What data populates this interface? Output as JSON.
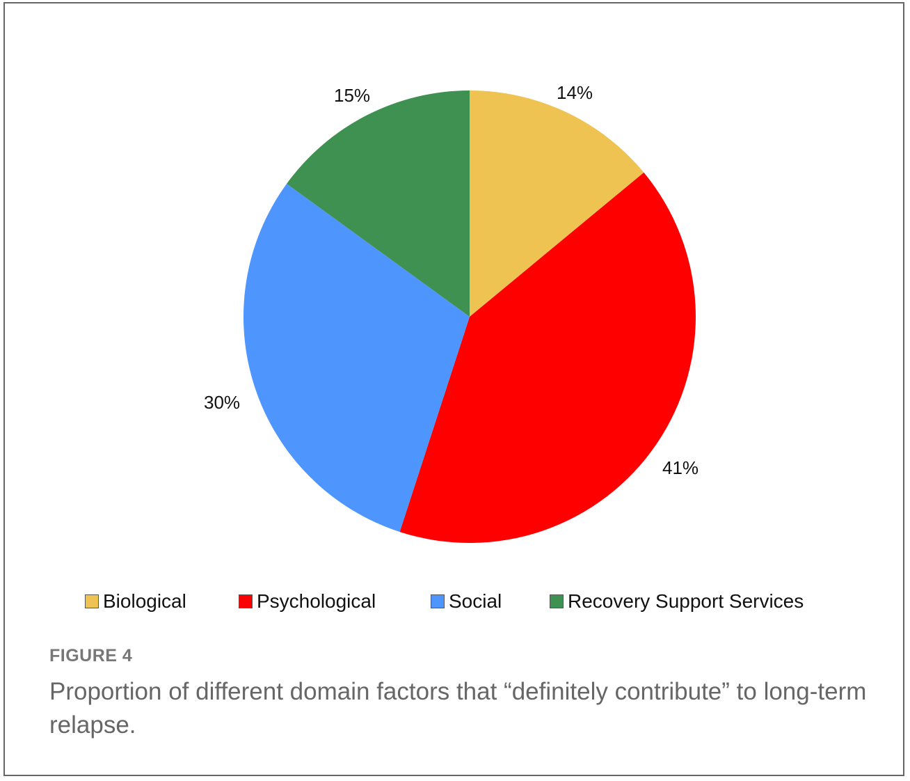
{
  "chart_data": {
    "type": "pie",
    "title": "",
    "categories": [
      "Biological",
      "Psychological",
      "Social",
      "Recovery Support Services"
    ],
    "values": [
      14,
      41,
      30,
      15
    ],
    "labels": [
      "14%",
      "41%",
      "30%",
      "15%"
    ],
    "colors": [
      "#EFC352",
      "#FF0000",
      "#4E95FE",
      "#3E9150"
    ],
    "legend_position": "bottom",
    "start_angle": "12 o'clock, clockwise"
  },
  "legend": {
    "items": [
      {
        "label": "Biological",
        "color": "#EFC352"
      },
      {
        "label": "Psychological",
        "color": "#FF0000"
      },
      {
        "label": "Social",
        "color": "#4E95FE"
      },
      {
        "label": "Recovery Support Services",
        "color": "#3E9150"
      }
    ]
  },
  "caption": {
    "figure_number": "FIGURE 4",
    "text": "Proportion of different domain factors that “definitely contribute” to long-term relapse."
  }
}
